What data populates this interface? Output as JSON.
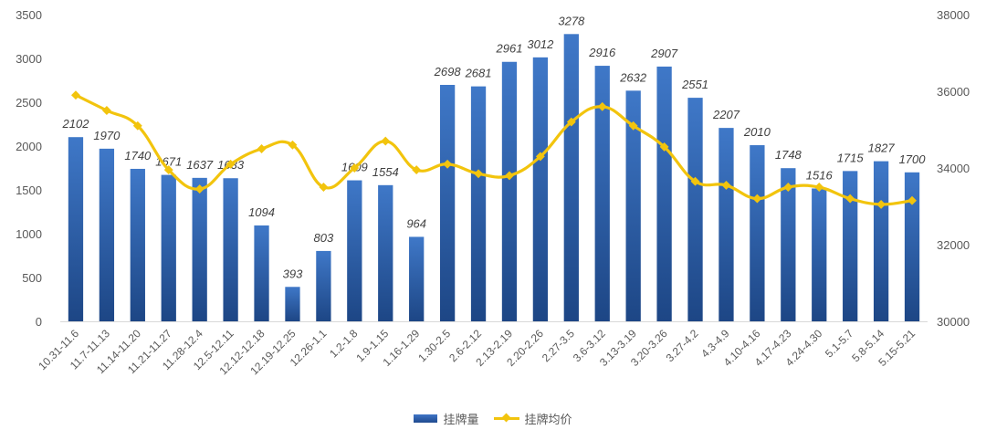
{
  "chart_data": {
    "type": "bar",
    "categories": [
      "10.31-11.6",
      "11.7-11.13",
      "11.14-11.20",
      "11.21-11.27",
      "11.28-12.4",
      "12.5-12.11",
      "12.12-12.18",
      "12.19-12.25",
      "12.26-1.1",
      "1.2-1.8",
      "1.9-1.15",
      "1.16-1.29",
      "1.30-2.5",
      "2.6-2.12",
      "2.13-2.19",
      "2.20-2.26",
      "2.27-3.5",
      "3.6-3.12",
      "3.13-3.19",
      "3.20-3.26",
      "3.27-4.2",
      "4.3-4.9",
      "4.10-4.16",
      "4.17-4.23",
      "4.24-4.30",
      "5.1-5.7",
      "5.8-5.14",
      "5.15-5.21"
    ],
    "series": [
      {
        "name": "挂牌量",
        "type": "bar",
        "axis": "left",
        "color": "#2e5fa8",
        "values": [
          2102,
          1970,
          1740,
          1671,
          1637,
          1633,
          1094,
          393,
          803,
          1609,
          1554,
          964,
          2698,
          2681,
          2961,
          3012,
          3278,
          2916,
          2632,
          2907,
          2551,
          2207,
          2010,
          1748,
          1516,
          1715,
          1827,
          1700
        ],
        "labels": [
          "2102",
          "1970",
          "1740",
          "1671",
          "1637",
          "1633",
          "1094",
          "393",
          "803",
          "1609",
          "1554",
          "964",
          "2698",
          "2681",
          "2961",
          "3012",
          "3278",
          "2916",
          "2632",
          "2907",
          "2551",
          "2207",
          "2010",
          "1748",
          "1516",
          "1715",
          "1827",
          "1700"
        ]
      },
      {
        "name": "挂牌均价",
        "type": "line",
        "axis": "right",
        "color": "#f2c40d",
        "values": [
          35900,
          35500,
          35100,
          33950,
          33450,
          34100,
          34500,
          34600,
          33500,
          34000,
          34700,
          33950,
          34100,
          33850,
          33800,
          34300,
          35200,
          35600,
          35100,
          34550,
          33650,
          33550,
          33200,
          33500,
          33500,
          33200,
          33050,
          33150
        ]
      }
    ],
    "y_left": {
      "min": 0,
      "max": 3500,
      "ticks": [
        "0",
        "500",
        "1000",
        "1500",
        "2000",
        "2500",
        "3000",
        "3500"
      ]
    },
    "y_right": {
      "min": 30000,
      "max": 38000,
      "ticks": [
        "30000",
        "32000",
        "34000",
        "36000",
        "38000"
      ]
    },
    "grid": false,
    "legend_position": "bottom"
  }
}
